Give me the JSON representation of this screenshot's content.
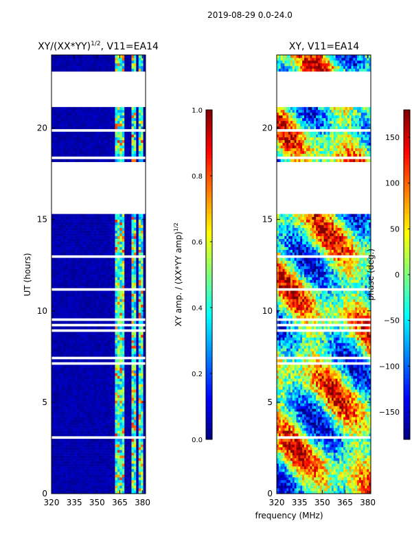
{
  "figure_title": "2019-08-29 0.0-24.0",
  "colors": {
    "jet": [
      "#00007f",
      "#0000ff",
      "#007fff",
      "#00ffff",
      "#7fff7f",
      "#ffff00",
      "#ff7f00",
      "#ff0000",
      "#7f0000"
    ],
    "axis": "#000000",
    "background": "#ffffff"
  },
  "chart_data": [
    {
      "type": "heatmap",
      "title_main": "XY/(XX*YY)",
      "title_sup": "1/2",
      "title_tail": ", V11=EA14",
      "xlabel": "",
      "ylabel": "UT (hours)",
      "xlim": [
        320,
        382
      ],
      "ylim": [
        0,
        24
      ],
      "xticks": [
        320,
        335,
        350,
        365,
        380
      ],
      "yticks": [
        0,
        5,
        10,
        15,
        20
      ],
      "colorbar": {
        "label_main": "XY amp. / (XX*YY amp)",
        "label_sup": "1/2",
        "range": [
          0.0,
          1.0
        ],
        "ticks": [
          "0.0",
          "0.2",
          "0.4",
          "0.6",
          "0.8",
          "1.0"
        ],
        "tick_values": [
          0.0,
          0.2,
          0.4,
          0.6,
          0.8,
          1.0
        ]
      },
      "gaps_hours": [
        [
          21.2,
          23.0
        ],
        [
          15.4,
          18.1
        ]
      ],
      "bright_channels_mhz": [
        [
          362,
          368
        ],
        [
          372,
          376
        ],
        [
          377,
          381
        ]
      ]
    },
    {
      "type": "heatmap",
      "title_main": "XY, V11=EA14",
      "xlabel": "frequency (MHz)",
      "ylabel": "",
      "xlim": [
        320,
        382
      ],
      "ylim": [
        0,
        24
      ],
      "xticks": [
        320,
        335,
        350,
        365,
        380
      ],
      "yticks": [
        0,
        5,
        10,
        15,
        20
      ],
      "colorbar": {
        "label_main": "phase (deg.)",
        "range": [
          -180,
          180
        ],
        "ticks": [
          "−150",
          "−100",
          "−50",
          "0",
          "50",
          "100",
          "150"
        ],
        "tick_values": [
          -150,
          -100,
          -50,
          0,
          50,
          100,
          150
        ]
      },
      "gaps_hours": [
        [
          21.2,
          23.0
        ],
        [
          15.4,
          18.1
        ]
      ]
    }
  ]
}
